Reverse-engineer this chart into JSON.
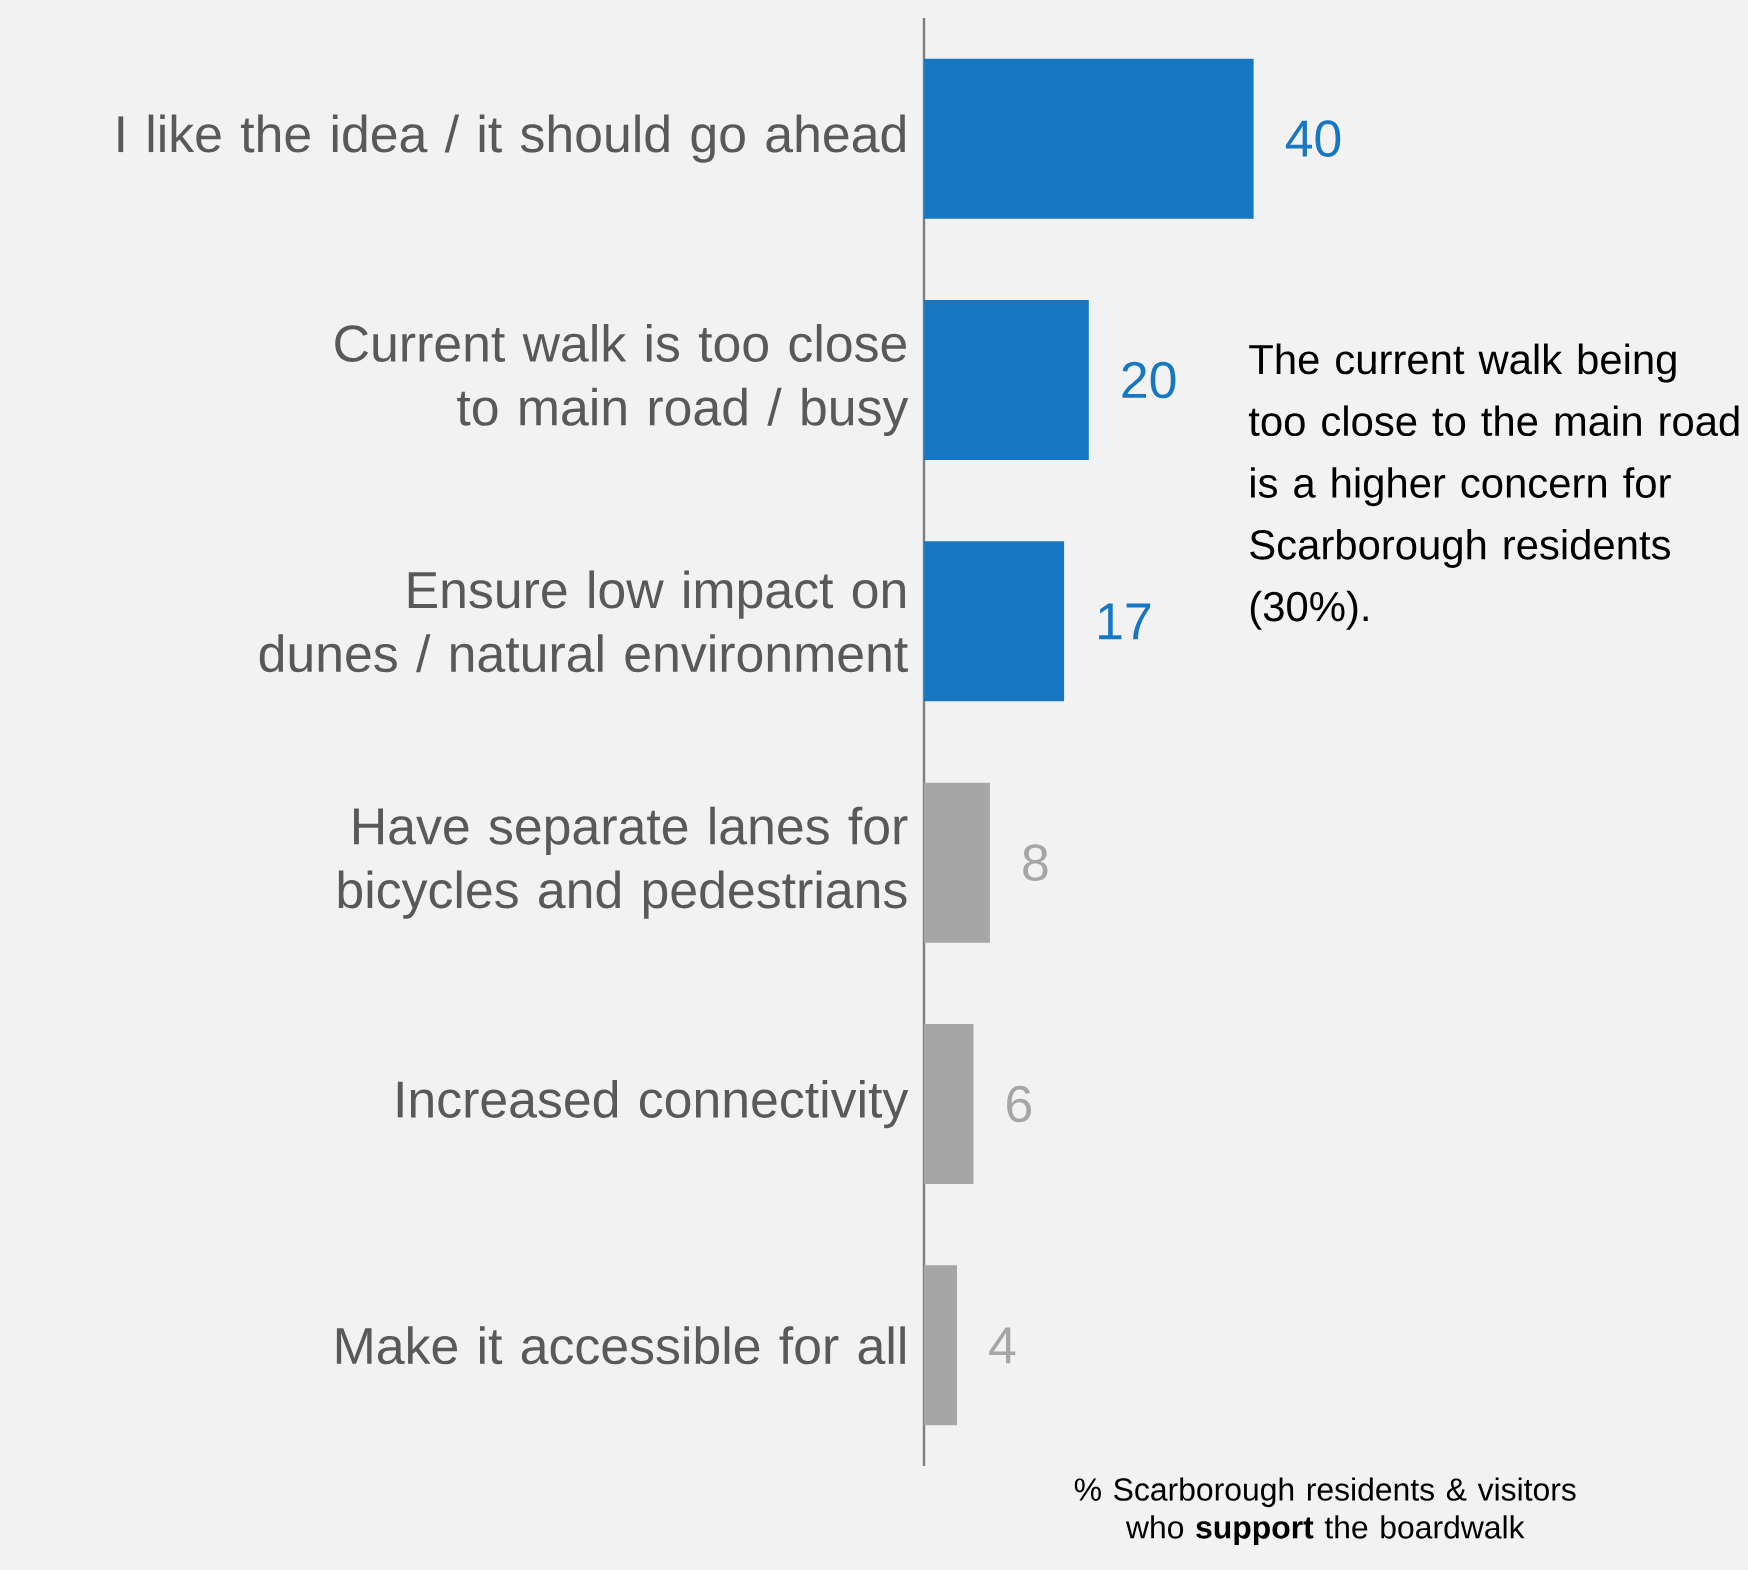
{
  "chart_data": {
    "type": "bar",
    "orientation": "horizontal",
    "categories": [
      "I like the idea / it should go ahead",
      "Current walk is too close to main road / busy",
      "Ensure low impact on dunes / natural environment",
      "Have separate lanes for bicycles and pedestrians",
      "Increased connectivity",
      "Make it accessible for all"
    ],
    "values": [
      40,
      20,
      17,
      8,
      6,
      4
    ],
    "colors": [
      "#1777c2",
      "#1777c2",
      "#1777c2",
      "#a6a6a6",
      "#a6a6a6",
      "#a6a6a6"
    ],
    "data_labels": true,
    "xlabel": "% Scarborough residents & visitors who **support** the boardwalk",
    "annotations": [
      "The current walk being too close to the main road is a higher concern for Scarborough residents (30%)."
    ]
  }
}
